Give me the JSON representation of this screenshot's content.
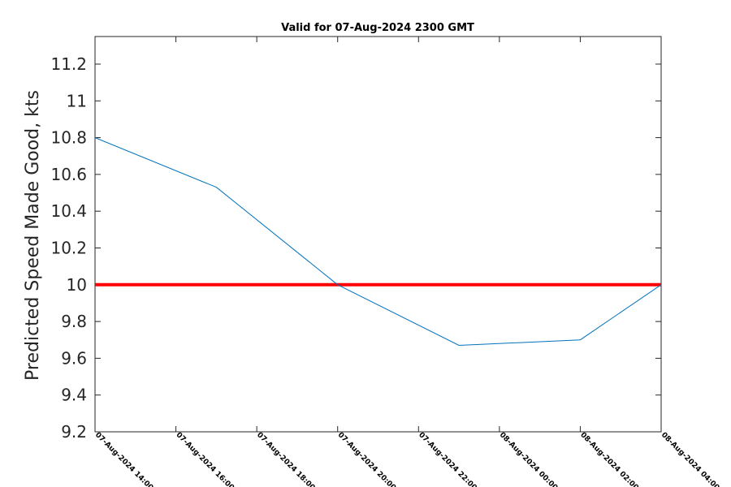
{
  "chart_data": {
    "type": "line",
    "title": "Valid for 07-Aug-2024 2300 GMT",
    "xlabel": "",
    "ylabel": "Predicted Speed Made Good, kts",
    "x_ticks": [
      "07-Aug-2024 14:00",
      "07-Aug-2024 16:00",
      "07-Aug-2024 18:00",
      "07-Aug-2024 20:00",
      "07-Aug-2024 22:00",
      "08-Aug-2024 00:00",
      "08-Aug-2024 02:00",
      "08-Aug-2024 04:00"
    ],
    "y_ticks": [
      "9.2",
      "9.4",
      "9.6",
      "9.8",
      "10",
      "10.2",
      "10.4",
      "10.6",
      "10.8",
      "11",
      "11.2"
    ],
    "ylim": [
      9.2,
      11.35
    ],
    "xlim": [
      "07-Aug-2024 14:00",
      "08-Aug-2024 04:00"
    ],
    "grid": false,
    "series": [
      {
        "color": "#0072BD",
        "x": [
          "07-Aug-2024 14:00",
          "07-Aug-2024 17:00",
          "07-Aug-2024 20:00",
          "07-Aug-2024 23:00",
          "08-Aug-2024 02:00",
          "08-Aug-2024 04:00"
        ],
        "values": [
          10.8,
          10.53,
          10.0,
          9.67,
          9.7,
          10.0
        ]
      }
    ],
    "reference_line": {
      "y": 10,
      "color": "#ff0000"
    }
  }
}
